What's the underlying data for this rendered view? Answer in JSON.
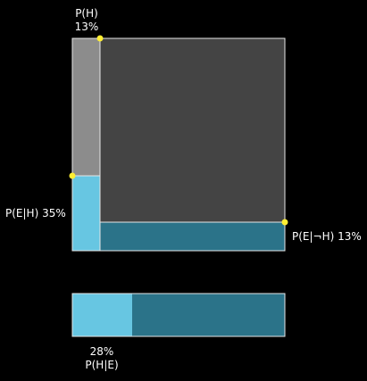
{
  "labels": {
    "p_h_name": "P(H)",
    "p_h_value": "13%",
    "p_e_given_h": "P(E|H) 35%",
    "p_e_given_not_h": "P(E|¬H) 13%",
    "posterior_value": "28%",
    "posterior_name": "P(H|E)"
  },
  "colors": {
    "background": "#000000",
    "square_fill": "#444444",
    "hypothesis_strip": "#8c8c8c",
    "evidence_given_h": "#67c6e2",
    "evidence_given_not_h": "#2b7389",
    "border": "#e6e6e6",
    "handle": "#ffee33",
    "text": "#ffffff"
  },
  "chart_data": {
    "type": "bayes-area-diagram",
    "p_h": 13,
    "p_e_given_h": 35,
    "p_e_given_not_h": 13,
    "p_h_given_e": 28
  }
}
